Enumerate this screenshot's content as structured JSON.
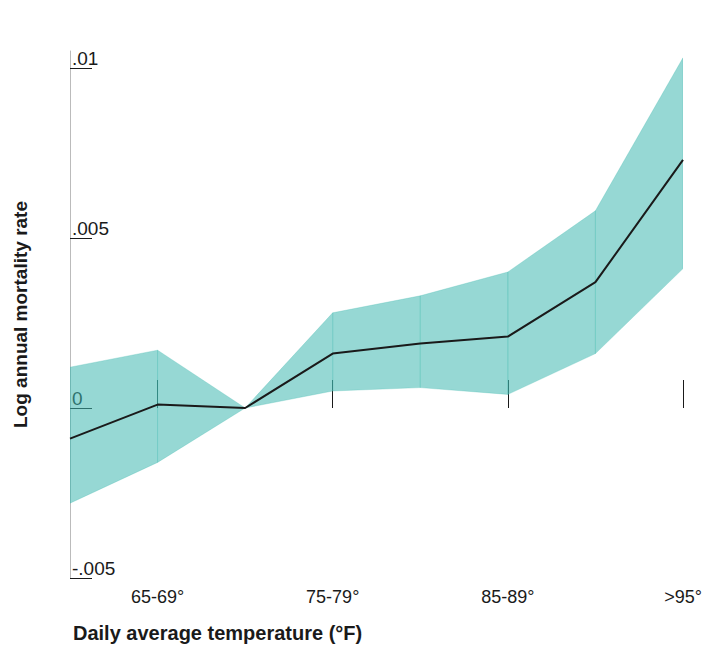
{
  "chart_data": {
    "type": "line",
    "x_label": "Daily average temperature (°F)",
    "y_label": "Log annual mortality rate",
    "categories": [
      null,
      "65-69°",
      null,
      "75-79°",
      null,
      "85-89°",
      null,
      ">95°"
    ],
    "values": [
      -0.0009,
      0.0001,
      0.0,
      0.0016,
      0.0019,
      0.0021,
      0.0037,
      0.0073
    ],
    "ci_lower": [
      -0.0028,
      -0.0016,
      0.0,
      0.0005,
      0.0006,
      0.0004,
      0.0016,
      0.0041
    ],
    "ci_upper": [
      0.0012,
      0.0017,
      0.0,
      0.0028,
      0.0033,
      0.004,
      0.0058,
      0.0103
    ],
    "color": "#1a1a1a",
    "ylim": [
      -0.005,
      0.0105
    ],
    "yticks": [
      {
        "value": -0.005,
        "label": "-.005"
      },
      0,
      {
        "value": 0.005,
        "label": ".005"
      },
      {
        "value": 0.01,
        "label": ".01"
      }
    ],
    "grid": false
  }
}
